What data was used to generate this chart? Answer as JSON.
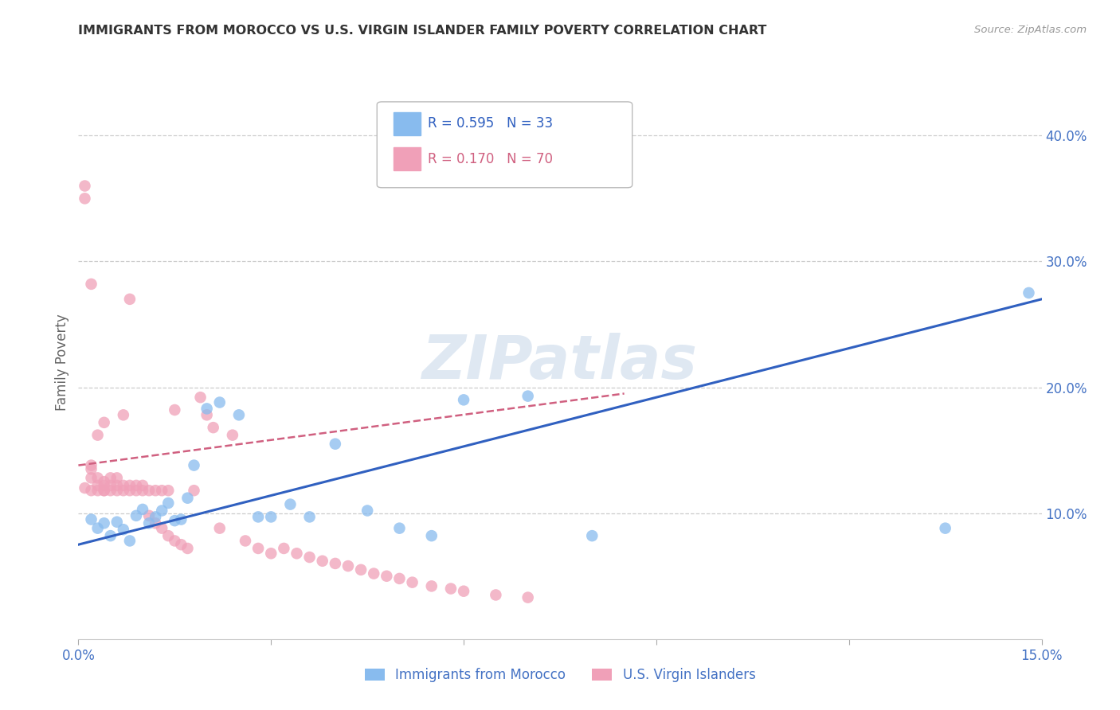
{
  "title": "IMMIGRANTS FROM MOROCCO VS U.S. VIRGIN ISLANDER FAMILY POVERTY CORRELATION CHART",
  "source": "Source: ZipAtlas.com",
  "ylabel": "Family Poverty",
  "xlim": [
    0.0,
    0.15
  ],
  "ylim": [
    0.0,
    0.44
  ],
  "x_ticks": [
    0.0,
    0.03,
    0.06,
    0.09,
    0.12,
    0.15
  ],
  "x_tick_labels": [
    "0.0%",
    "",
    "",
    "",
    "",
    "15.0%"
  ],
  "y_ticks_right": [
    0.1,
    0.2,
    0.3,
    0.4
  ],
  "y_tick_labels_right": [
    "10.0%",
    "20.0%",
    "30.0%",
    "40.0%"
  ],
  "watermark": "ZIPatlas",
  "blue_scatter_x": [
    0.002,
    0.003,
    0.004,
    0.005,
    0.006,
    0.007,
    0.008,
    0.009,
    0.01,
    0.011,
    0.012,
    0.013,
    0.014,
    0.015,
    0.016,
    0.017,
    0.018,
    0.02,
    0.022,
    0.025,
    0.028,
    0.03,
    0.033,
    0.036,
    0.04,
    0.045,
    0.05,
    0.055,
    0.06,
    0.07,
    0.08,
    0.135,
    0.148
  ],
  "blue_scatter_y": [
    0.095,
    0.088,
    0.092,
    0.082,
    0.093,
    0.087,
    0.078,
    0.098,
    0.103,
    0.092,
    0.097,
    0.102,
    0.108,
    0.094,
    0.095,
    0.112,
    0.138,
    0.183,
    0.188,
    0.178,
    0.097,
    0.097,
    0.107,
    0.097,
    0.155,
    0.102,
    0.088,
    0.082,
    0.19,
    0.193,
    0.082,
    0.088,
    0.275
  ],
  "pink_scatter_x": [
    0.001,
    0.001,
    0.001,
    0.002,
    0.002,
    0.002,
    0.002,
    0.002,
    0.003,
    0.003,
    0.003,
    0.003,
    0.004,
    0.004,
    0.004,
    0.004,
    0.004,
    0.005,
    0.005,
    0.005,
    0.006,
    0.006,
    0.006,
    0.007,
    0.007,
    0.007,
    0.008,
    0.008,
    0.008,
    0.009,
    0.009,
    0.01,
    0.01,
    0.011,
    0.011,
    0.012,
    0.012,
    0.013,
    0.013,
    0.014,
    0.014,
    0.015,
    0.015,
    0.016,
    0.017,
    0.018,
    0.019,
    0.02,
    0.021,
    0.022,
    0.024,
    0.026,
    0.028,
    0.03,
    0.032,
    0.034,
    0.036,
    0.038,
    0.04,
    0.042,
    0.044,
    0.046,
    0.048,
    0.05,
    0.052,
    0.055,
    0.058,
    0.06,
    0.065,
    0.07
  ],
  "pink_scatter_y": [
    0.12,
    0.35,
    0.36,
    0.118,
    0.128,
    0.138,
    0.135,
    0.282,
    0.118,
    0.122,
    0.128,
    0.162,
    0.118,
    0.122,
    0.125,
    0.118,
    0.172,
    0.118,
    0.122,
    0.128,
    0.118,
    0.122,
    0.128,
    0.118,
    0.122,
    0.178,
    0.118,
    0.122,
    0.27,
    0.118,
    0.122,
    0.118,
    0.122,
    0.098,
    0.118,
    0.092,
    0.118,
    0.088,
    0.118,
    0.082,
    0.118,
    0.078,
    0.182,
    0.075,
    0.072,
    0.118,
    0.192,
    0.178,
    0.168,
    0.088,
    0.162,
    0.078,
    0.072,
    0.068,
    0.072,
    0.068,
    0.065,
    0.062,
    0.06,
    0.058,
    0.055,
    0.052,
    0.05,
    0.048,
    0.045,
    0.042,
    0.04,
    0.038,
    0.035,
    0.033
  ],
  "blue_line_x": [
    0.0,
    0.15
  ],
  "blue_line_y": [
    0.075,
    0.27
  ],
  "pink_line_x": [
    0.0,
    0.085
  ],
  "pink_line_y": [
    0.138,
    0.195
  ],
  "blue_color": "#3060C0",
  "pink_color": "#D06080",
  "scatter_blue": "#88BBEE",
  "scatter_pink": "#F0A0B8",
  "background_color": "#ffffff",
  "grid_color": "#cccccc",
  "axis_label_color": "#4472C4",
  "right_tick_color": "#4472C4",
  "legend_bottom": [
    {
      "label": "Immigrants from Morocco",
      "color": "#88BBEE"
    },
    {
      "label": "U.S. Virgin Islanders",
      "color": "#F0A0B8"
    }
  ]
}
